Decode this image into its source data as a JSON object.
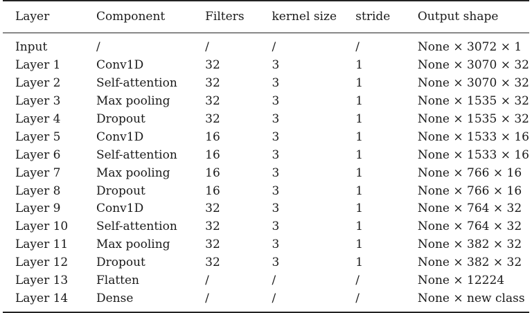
{
  "table": {
    "headers": [
      "Layer",
      "Component",
      "Filters",
      "kernel size",
      "stride",
      "Output shape"
    ],
    "rows": [
      [
        "Input",
        "/",
        "/",
        "/",
        "/",
        "None × 3072 × 1"
      ],
      [
        "Layer 1",
        "Conv1D",
        "32",
        "3",
        "1",
        "None × 3070 × 32"
      ],
      [
        "Layer 2",
        "Self-attention",
        "32",
        "3",
        "1",
        "None × 3070 × 32"
      ],
      [
        "Layer 3",
        "Max pooling",
        "32",
        "3",
        "1",
        "None × 1535 × 32"
      ],
      [
        "Layer 4",
        "Dropout",
        "32",
        "3",
        "1",
        "None × 1535 × 32"
      ],
      [
        "Layer 5",
        "Conv1D",
        "16",
        "3",
        "1",
        "None × 1533 × 16"
      ],
      [
        "Layer 6",
        "Self-attention",
        "16",
        "3",
        "1",
        "None × 1533 × 16"
      ],
      [
        "Layer 7",
        "Max pooling",
        "16",
        "3",
        "1",
        "None × 766 × 16"
      ],
      [
        "Layer 8",
        "Dropout",
        "16",
        "3",
        "1",
        "None × 766 × 16"
      ],
      [
        "Layer 9",
        "Conv1D",
        "32",
        "3",
        "1",
        "None × 764 × 32"
      ],
      [
        "Layer 10",
        "Self-attention",
        "32",
        "3",
        "1",
        "None × 764 × 32"
      ],
      [
        "Layer 11",
        "Max pooling",
        "32",
        "3",
        "1",
        "None × 382 × 32"
      ],
      [
        "Layer 12",
        "Dropout",
        "32",
        "3",
        "1",
        "None × 382 × 32"
      ],
      [
        "Layer 13",
        "Flatten",
        "/",
        "/",
        "/",
        "None × 12224"
      ],
      [
        "Layer 14",
        "Dense",
        "/",
        "/",
        "/",
        "None × new class"
      ]
    ]
  }
}
